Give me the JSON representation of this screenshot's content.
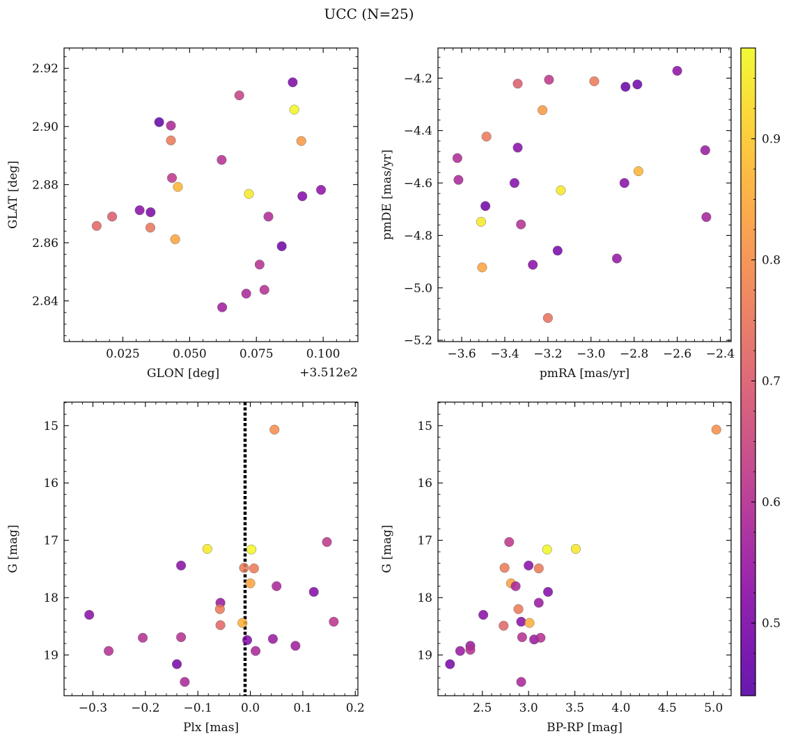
{
  "figure": {
    "title": "UCC (N=25)",
    "colorbar": {
      "min": 0.44,
      "max": 0.975,
      "ticks": [
        0.5,
        0.6,
        0.7,
        0.8,
        0.9
      ],
      "tick_labels": [
        "0.5",
        "0.6",
        "0.7",
        "0.8",
        "0.9"
      ],
      "colormap": "plasma"
    }
  },
  "chart_data": [
    {
      "type": "scatter",
      "id": "glon-glat",
      "xlabel": "GLON [deg]",
      "ylabel": "GLAT [deg]",
      "x_offset_label": "+3.512e2",
      "xlim": [
        0.003,
        0.113
      ],
      "ylim": [
        2.826,
        2.927
      ],
      "xticks": [
        0.025,
        0.05,
        0.075,
        0.1
      ],
      "xtick_labels": [
        "0.025",
        "0.050",
        "0.075",
        "0.100"
      ],
      "yticks": [
        2.84,
        2.86,
        2.88,
        2.9,
        2.92
      ],
      "ytick_labels": [
        "2.84",
        "2.86",
        "2.88",
        "2.90",
        "2.92"
      ],
      "points": [
        {
          "x": 0.0152,
          "y": 2.8658,
          "c": 0.72
        },
        {
          "x": 0.021,
          "y": 2.869,
          "c": 0.7
        },
        {
          "x": 0.0313,
          "y": 2.8712,
          "c": 0.52
        },
        {
          "x": 0.0353,
          "y": 2.8652,
          "c": 0.75
        },
        {
          "x": 0.0354,
          "y": 2.8705,
          "c": 0.5
        },
        {
          "x": 0.0386,
          "y": 2.9015,
          "c": 0.46
        },
        {
          "x": 0.043,
          "y": 2.9003,
          "c": 0.58
        },
        {
          "x": 0.043,
          "y": 2.8952,
          "c": 0.76
        },
        {
          "x": 0.0434,
          "y": 2.8823,
          "c": 0.62
        },
        {
          "x": 0.0446,
          "y": 2.8612,
          "c": 0.84
        },
        {
          "x": 0.0456,
          "y": 2.8792,
          "c": 0.87
        },
        {
          "x": 0.062,
          "y": 2.8885,
          "c": 0.6
        },
        {
          "x": 0.0622,
          "y": 2.8378,
          "c": 0.56
        },
        {
          "x": 0.0686,
          "y": 2.9107,
          "c": 0.64
        },
        {
          "x": 0.0712,
          "y": 2.8425,
          "c": 0.58
        },
        {
          "x": 0.0722,
          "y": 2.8768,
          "c": 0.95
        },
        {
          "x": 0.0762,
          "y": 2.8525,
          "c": 0.6
        },
        {
          "x": 0.078,
          "y": 2.8438,
          "c": 0.6
        },
        {
          "x": 0.0795,
          "y": 2.869,
          "c": 0.59
        },
        {
          "x": 0.0845,
          "y": 2.8588,
          "c": 0.48
        },
        {
          "x": 0.0886,
          "y": 2.9152,
          "c": 0.5
        },
        {
          "x": 0.0892,
          "y": 2.9058,
          "c": 0.97
        },
        {
          "x": 0.0918,
          "y": 2.895,
          "c": 0.82
        },
        {
          "x": 0.0922,
          "y": 2.876,
          "c": 0.51
        },
        {
          "x": 0.0992,
          "y": 2.8782,
          "c": 0.53
        }
      ]
    },
    {
      "type": "scatter",
      "id": "pmra-pmde",
      "xlabel": "pmRA [mas/yr]",
      "ylabel": "pmDE [mas/yr]",
      "xlim": [
        -3.71,
        -2.35
      ],
      "ylim": [
        -5.205,
        -4.085
      ],
      "xticks": [
        -3.6,
        -3.4,
        -3.2,
        -3.0,
        -2.8,
        -2.6,
        -2.4
      ],
      "xtick_labels": [
        "−3.6",
        "−3.4",
        "−3.2",
        "−3.0",
        "−2.8",
        "−2.6",
        "−2.4"
      ],
      "yticks": [
        -5.2,
        -5.0,
        -4.8,
        -4.6,
        -4.4,
        -4.2
      ],
      "ytick_labels": [
        "−5.2",
        "−5.0",
        "−4.8",
        "−4.6",
        "−4.4",
        "−4.2"
      ],
      "points": [
        {
          "x": -3.62,
          "y": -4.505,
          "c": 0.59
        },
        {
          "x": -3.615,
          "y": -4.588,
          "c": 0.58
        },
        {
          "x": -3.51,
          "y": -4.748,
          "c": 0.95
        },
        {
          "x": -3.505,
          "y": -4.922,
          "c": 0.84
        },
        {
          "x": -3.49,
          "y": -4.688,
          "c": 0.48
        },
        {
          "x": -3.485,
          "y": -4.423,
          "c": 0.76
        },
        {
          "x": -3.355,
          "y": -4.6,
          "c": 0.51
        },
        {
          "x": -3.34,
          "y": -4.221,
          "c": 0.7
        },
        {
          "x": -3.34,
          "y": -4.465,
          "c": 0.52
        },
        {
          "x": -3.325,
          "y": -4.758,
          "c": 0.6
        },
        {
          "x": -3.27,
          "y": -4.912,
          "c": 0.52
        },
        {
          "x": -3.225,
          "y": -4.322,
          "c": 0.82
        },
        {
          "x": -3.195,
          "y": -4.206,
          "c": 0.62
        },
        {
          "x": -3.2,
          "y": -5.115,
          "c": 0.74
        },
        {
          "x": -3.155,
          "y": -4.858,
          "c": 0.49
        },
        {
          "x": -3.14,
          "y": -4.628,
          "c": 0.95
        },
        {
          "x": -2.985,
          "y": -4.212,
          "c": 0.76
        },
        {
          "x": -2.88,
          "y": -4.888,
          "c": 0.54
        },
        {
          "x": -2.845,
          "y": -4.6,
          "c": 0.52
        },
        {
          "x": -2.84,
          "y": -4.233,
          "c": 0.47
        },
        {
          "x": -2.785,
          "y": -4.224,
          "c": 0.48
        },
        {
          "x": -2.78,
          "y": -4.555,
          "c": 0.87
        },
        {
          "x": -2.6,
          "y": -4.172,
          "c": 0.53
        },
        {
          "x": -2.47,
          "y": -4.475,
          "c": 0.55
        },
        {
          "x": -2.465,
          "y": -4.73,
          "c": 0.57
        }
      ]
    },
    {
      "type": "scatter",
      "id": "plx-g",
      "xlabel": "Plx [mas]",
      "ylabel": "G [mag]",
      "xlim": [
        -0.355,
        0.205
      ],
      "ylim": [
        19.71,
        14.59
      ],
      "y_inverted": true,
      "xticks": [
        -0.3,
        -0.2,
        -0.1,
        0.0,
        0.1,
        0.2
      ],
      "xtick_labels": [
        "−0.3",
        "−0.2",
        "−0.1",
        "0.0",
        "0.1",
        "0.2"
      ],
      "yticks": [
        15,
        16,
        17,
        18,
        19
      ],
      "ytick_labels": [
        "15",
        "16",
        "17",
        "18",
        "19"
      ],
      "vline": {
        "x": -0.01,
        "style": "dotted",
        "color": "#000000"
      },
      "points": [
        {
          "x": -0.307,
          "y": 18.3,
          "c": 0.52
        },
        {
          "x": -0.27,
          "y": 18.93,
          "c": 0.6
        },
        {
          "x": -0.205,
          "y": 18.7,
          "c": 0.6
        },
        {
          "x": -0.14,
          "y": 19.16,
          "c": 0.49
        },
        {
          "x": -0.132,
          "y": 17.44,
          "c": 0.52
        },
        {
          "x": -0.132,
          "y": 18.69,
          "c": 0.6
        },
        {
          "x": -0.125,
          "y": 19.47,
          "c": 0.58
        },
        {
          "x": -0.082,
          "y": 17.15,
          "c": 0.95
        },
        {
          "x": -0.057,
          "y": 18.09,
          "c": 0.55
        },
        {
          "x": -0.058,
          "y": 18.2,
          "c": 0.76
        },
        {
          "x": -0.057,
          "y": 18.48,
          "c": 0.72
        },
        {
          "x": -0.015,
          "y": 18.44,
          "c": 0.86
        },
        {
          "x": -0.012,
          "y": 17.48,
          "c": 0.76
        },
        {
          "x": -0.006,
          "y": 18.74,
          "c": 0.51
        },
        {
          "x": 0.0,
          "y": 17.75,
          "c": 0.84
        },
        {
          "x": 0.002,
          "y": 17.16,
          "c": 0.97
        },
        {
          "x": 0.007,
          "y": 17.49,
          "c": 0.76
        },
        {
          "x": 0.01,
          "y": 18.93,
          "c": 0.58
        },
        {
          "x": 0.043,
          "y": 18.72,
          "c": 0.55
        },
        {
          "x": 0.046,
          "y": 15.07,
          "c": 0.8
        },
        {
          "x": 0.05,
          "y": 17.8,
          "c": 0.58
        },
        {
          "x": 0.086,
          "y": 18.84,
          "c": 0.56
        },
        {
          "x": 0.121,
          "y": 17.9,
          "c": 0.51
        },
        {
          "x": 0.146,
          "y": 17.03,
          "c": 0.62
        },
        {
          "x": 0.159,
          "y": 18.42,
          "c": 0.61
        }
      ]
    },
    {
      "type": "scatter",
      "id": "bprp-g",
      "xlabel": "BP-RP [mag]",
      "ylabel": "G [mag]",
      "xlim": [
        2.02,
        5.19
      ],
      "ylim": [
        19.71,
        14.59
      ],
      "y_inverted": true,
      "xticks": [
        2.5,
        3.0,
        3.5,
        4.0,
        4.5,
        5.0
      ],
      "xtick_labels": [
        "2.5",
        "3.0",
        "3.5",
        "4.0",
        "4.5",
        "5.0"
      ],
      "yticks": [
        15,
        16,
        17,
        18,
        19
      ],
      "ytick_labels": [
        "15",
        "16",
        "17",
        "18",
        "19"
      ],
      "points": [
        {
          "x": 2.15,
          "y": 19.16,
          "c": 0.49
        },
        {
          "x": 2.26,
          "y": 18.93,
          "c": 0.55
        },
        {
          "x": 2.37,
          "y": 18.84,
          "c": 0.55
        },
        {
          "x": 2.37,
          "y": 18.91,
          "c": 0.6
        },
        {
          "x": 2.51,
          "y": 18.3,
          "c": 0.52
        },
        {
          "x": 2.73,
          "y": 18.49,
          "c": 0.72
        },
        {
          "x": 2.74,
          "y": 17.48,
          "c": 0.76
        },
        {
          "x": 2.79,
          "y": 17.03,
          "c": 0.62
        },
        {
          "x": 2.81,
          "y": 17.75,
          "c": 0.84
        },
        {
          "x": 2.86,
          "y": 17.8,
          "c": 0.58
        },
        {
          "x": 2.89,
          "y": 18.2,
          "c": 0.76
        },
        {
          "x": 2.92,
          "y": 18.42,
          "c": 0.52
        },
        {
          "x": 2.92,
          "y": 19.47,
          "c": 0.58
        },
        {
          "x": 2.93,
          "y": 18.69,
          "c": 0.6
        },
        {
          "x": 3.0,
          "y": 17.44,
          "c": 0.52
        },
        {
          "x": 3.01,
          "y": 18.44,
          "c": 0.86
        },
        {
          "x": 3.06,
          "y": 18.73,
          "c": 0.55
        },
        {
          "x": 3.11,
          "y": 17.49,
          "c": 0.76
        },
        {
          "x": 3.11,
          "y": 18.09,
          "c": 0.55
        },
        {
          "x": 3.13,
          "y": 18.7,
          "c": 0.6
        },
        {
          "x": 3.2,
          "y": 17.16,
          "c": 0.97
        },
        {
          "x": 3.21,
          "y": 17.9,
          "c": 0.51
        },
        {
          "x": 3.51,
          "y": 17.15,
          "c": 0.95
        },
        {
          "x": 5.03,
          "y": 15.07,
          "c": 0.8
        }
      ]
    }
  ]
}
